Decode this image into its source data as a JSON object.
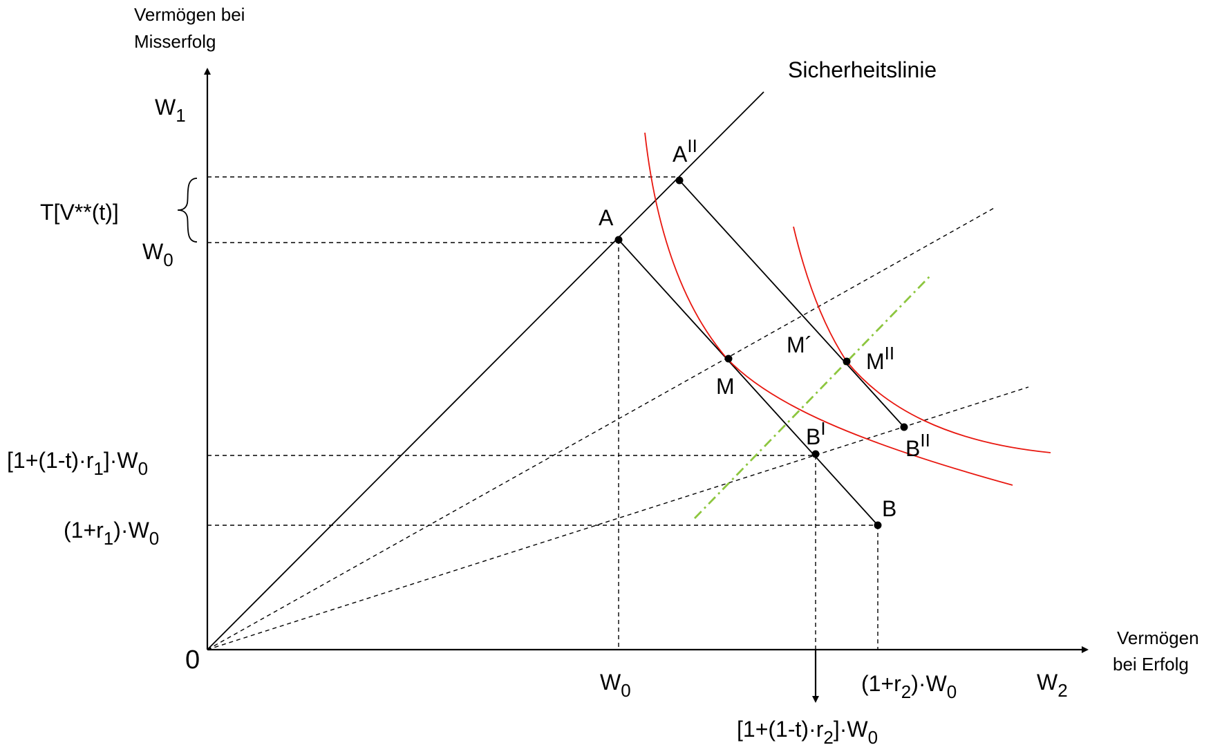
{
  "axes": {
    "y_title_line1": "Vermögen bei",
    "y_title_line2": "Misserfolg",
    "x_title_line1": "Vermögen",
    "x_title_line2": "bei Erfolg",
    "origin": "0",
    "y_symbol": "W",
    "y_symbol_sub": "1",
    "x_symbol": "W",
    "x_symbol_sub": "2"
  },
  "curve_labels": {
    "safety_line": "Sicherheitslinie"
  },
  "y_labels": {
    "tax_bracket": "T[V**(t)]",
    "w0": "W",
    "w0_sub": "0",
    "after_tax_return_pre": "[1+(1-t)·r",
    "after_tax_return_sub1": "1",
    "after_tax_return_post": "]·W",
    "after_tax_return_sub2": "0",
    "gross_return_pre": "(1+r",
    "gross_return_sub1": "1",
    "gross_return_post": ")·W",
    "gross_return_sub2": "0"
  },
  "x_labels": {
    "w0": "W",
    "w0_sub": "0",
    "gross_return_pre": "(1+r",
    "gross_return_sub1": "2",
    "gross_return_post": ")·W",
    "gross_return_sub2": "0",
    "after_tax_return_pre": "[1+(1-t)·r",
    "after_tax_return_sub1": "2",
    "after_tax_return_post": "]·W",
    "after_tax_return_sub2": "0"
  },
  "points": {
    "A": "A",
    "A2": "A",
    "A2_sup": "II",
    "M": "M",
    "M_prime": "M´",
    "M2": "M",
    "M2_sup": "II",
    "B": "B",
    "B1": "B",
    "B1_sup": "I",
    "B2": "B",
    "B2_sup": "II"
  },
  "colors": {
    "axes": "#000000",
    "indifference_curves": "#e8170f",
    "expansion_path": "#8dc63f"
  }
}
